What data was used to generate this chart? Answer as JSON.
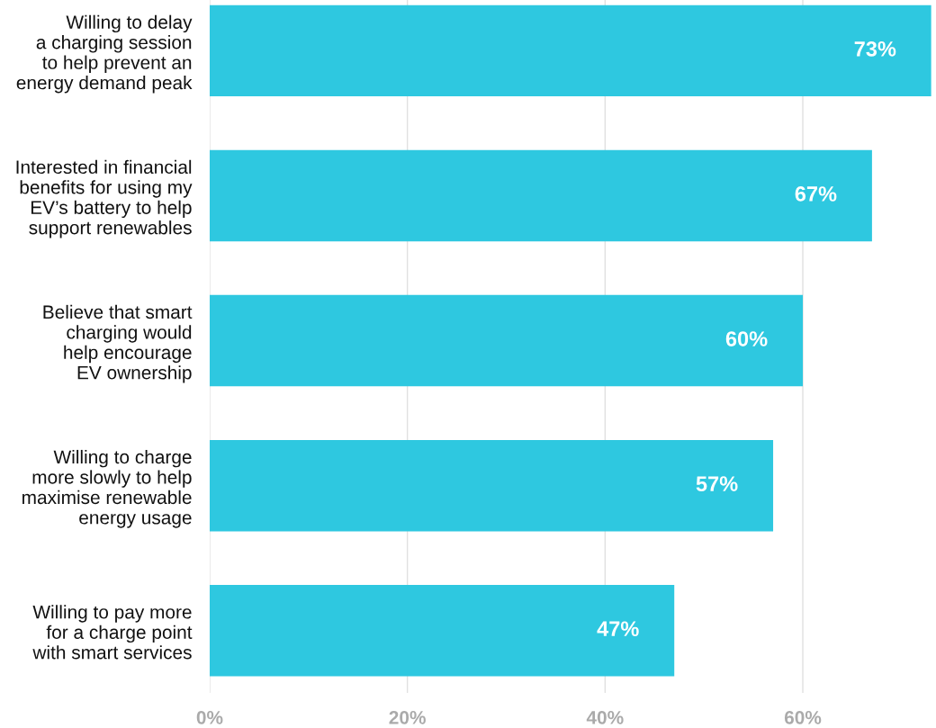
{
  "chart_data": {
    "type": "bar",
    "orientation": "horizontal",
    "categories": [
      "Willing to delay\na charging session\nto help prevent an\nenergy demand peak",
      "Interested in financial\nbenefits for using my\nEV’s battery to help\nsupport renewables",
      "Believe that smart\ncharging would\nhelp encourage\nEV ownership",
      "Willing to charge\nmore slowly to help\nmaximise renewable\nenergy usage",
      "Willing to pay more\nfor a charge point\nwith smart services"
    ],
    "values": [
      73,
      67,
      60,
      57,
      47
    ],
    "value_labels": [
      "73%",
      "67%",
      "60%",
      "57%",
      "47%"
    ],
    "color": "#2ec8e0",
    "xlim": [
      0,
      73
    ],
    "xticks": [
      {
        "value": 0,
        "label": "0%"
      },
      {
        "value": 20,
        "label": "20%"
      },
      {
        "value": 40,
        "label": "40%"
      },
      {
        "value": 60,
        "label": "60%"
      }
    ],
    "grid": "x",
    "legend": false
  }
}
